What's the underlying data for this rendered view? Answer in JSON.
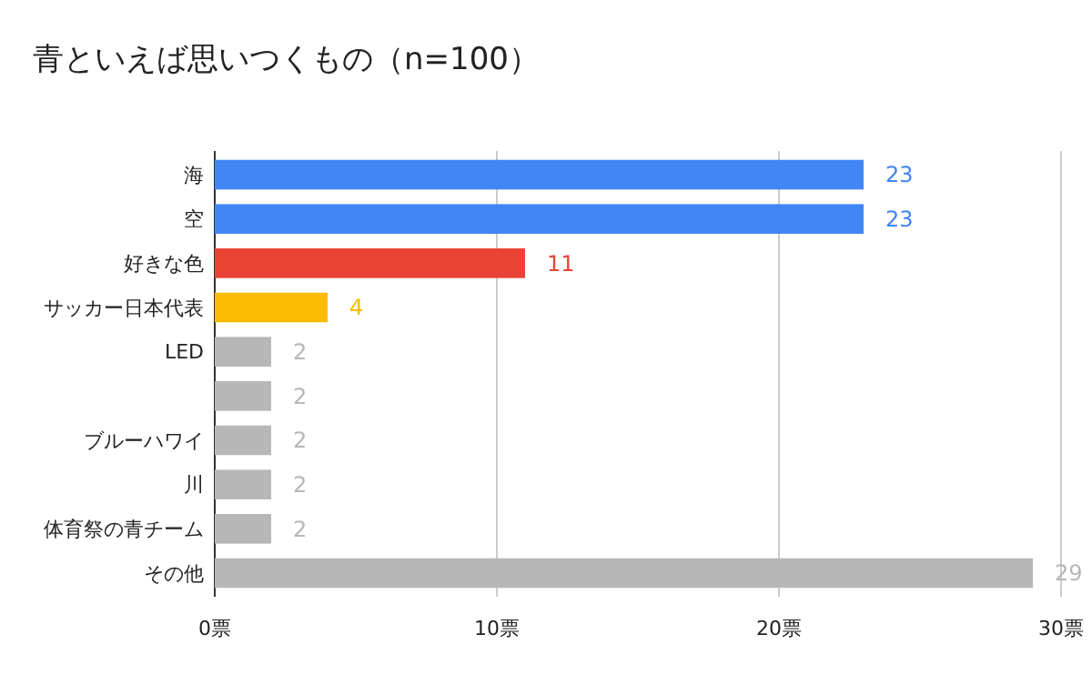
{
  "chart_data": {
    "type": "bar",
    "orientation": "horizontal",
    "title": "青といえば思いつくもの（n=100）",
    "categories": [
      "海",
      "空",
      "好きな色",
      "サッカー日本代表",
      "LED",
      null,
      "ブルーハワイ",
      "川",
      "体育祭の青チーム",
      "その他"
    ],
    "values": [
      23,
      23,
      11,
      4,
      2,
      2,
      2,
      2,
      2,
      29
    ],
    "colors": [
      "#4285f4",
      "#4285f4",
      "#ea4335",
      "#fbbc04",
      "#b7b7b7",
      "#b7b7b7",
      "#b7b7b7",
      "#b7b7b7",
      "#b7b7b7",
      "#b7b7b7"
    ],
    "xlim": [
      0,
      30
    ],
    "xticks": [
      {
        "value": 0,
        "label": "0票"
      },
      {
        "value": 10,
        "label": "10票"
      },
      {
        "value": 20,
        "label": "20票"
      },
      {
        "value": 30,
        "label": "30票"
      }
    ],
    "grid": "x",
    "data_labels": true
  }
}
